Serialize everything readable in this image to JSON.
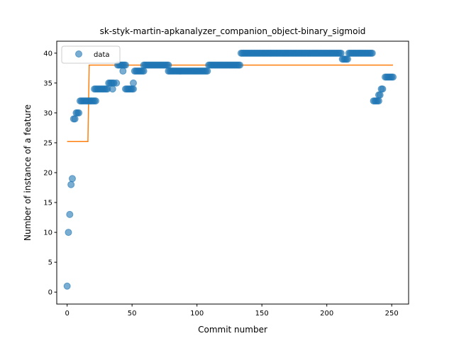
{
  "chart_data": {
    "type": "scatter",
    "title": "sk-styk-martin-apkanalyzer_companion_object-binary_sigmoid",
    "xlabel": "Commit number",
    "ylabel": "Number of instance of a feature",
    "xlim": [
      -8,
      263
    ],
    "ylim": [
      -2,
      42
    ],
    "xticks": [
      0,
      50,
      100,
      150,
      200,
      250
    ],
    "yticks": [
      0,
      5,
      10,
      15,
      20,
      25,
      30,
      35,
      40
    ],
    "grid": false,
    "legend": {
      "placement": "top-left",
      "entries": [
        "data"
      ]
    },
    "colors": {
      "data": "#1f77b4",
      "fit": "#ff7f0e"
    },
    "series": [
      {
        "name": "data",
        "kind": "scatter",
        "segments": [
          {
            "x": [
              0
            ],
            "y": [
              1
            ]
          },
          {
            "x": [
              1
            ],
            "y": [
              10
            ]
          },
          {
            "x": [
              2
            ],
            "y": [
              13
            ]
          },
          {
            "x": [
              3
            ],
            "y": [
              18
            ]
          },
          {
            "x": [
              4
            ],
            "y": [
              19
            ]
          },
          {
            "x": [
              5,
              6
            ],
            "y": [
              29,
              29
            ]
          },
          {
            "x": [
              7,
              8,
              9
            ],
            "y": [
              30,
              30,
              30
            ]
          },
          {
            "x": [
              10,
              22
            ],
            "y": [
              32,
              32
            ]
          },
          {
            "x": [
              21,
              31
            ],
            "y": [
              34,
              34
            ]
          },
          {
            "x": [
              32,
              36
            ],
            "y": [
              35,
              35
            ]
          },
          {
            "x": [
              35
            ],
            "y": [
              34
            ]
          },
          {
            "x": [
              38
            ],
            "y": [
              35
            ]
          },
          {
            "x": [
              39,
              45
            ],
            "y": [
              38,
              38
            ]
          },
          {
            "x": [
              43
            ],
            "y": [
              37
            ]
          },
          {
            "x": [
              45,
              51
            ],
            "y": [
              34,
              34
            ]
          },
          {
            "x": [
              51
            ],
            "y": [
              35
            ]
          },
          {
            "x": [
              52,
              59
            ],
            "y": [
              37,
              37
            ]
          },
          {
            "x": [
              59,
              78
            ],
            "y": [
              38,
              38
            ]
          },
          {
            "x": [
              78,
              108
            ],
            "y": [
              37,
              37
            ]
          },
          {
            "x": [
              109,
              133
            ],
            "y": [
              38,
              38
            ]
          },
          {
            "x": [
              134,
              211
            ],
            "y": [
              40,
              40
            ]
          },
          {
            "x": [
              212,
              216
            ],
            "y": [
              39,
              39
            ]
          },
          {
            "x": [
              217,
              235
            ],
            "y": [
              40,
              40
            ]
          },
          {
            "x": [
              236,
              240
            ],
            "y": [
              32,
              32
            ]
          },
          {
            "x": [
              240,
              241
            ],
            "y": [
              33,
              33
            ]
          },
          {
            "x": [
              242,
              243
            ],
            "y": [
              34,
              34
            ]
          },
          {
            "x": [
              245,
              251
            ],
            "y": [
              36,
              36
            ]
          }
        ]
      },
      {
        "name": "fit",
        "kind": "line",
        "x": [
          0,
          16,
          17,
          251
        ],
        "y": [
          25.2,
          25.2,
          38,
          38
        ]
      }
    ]
  }
}
